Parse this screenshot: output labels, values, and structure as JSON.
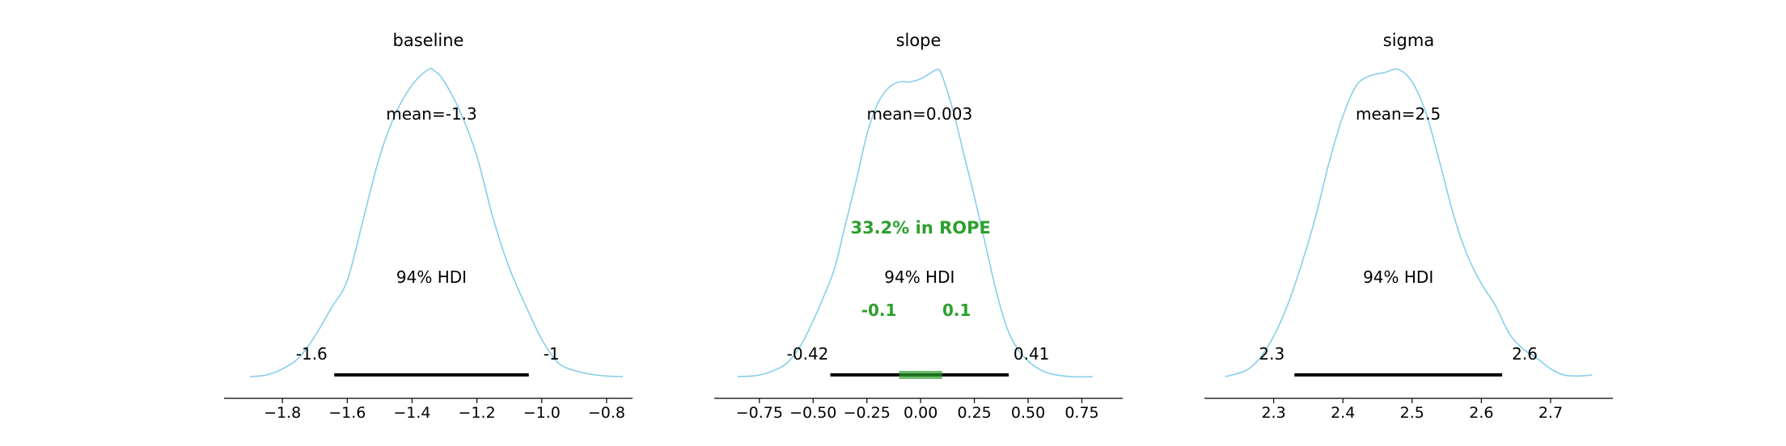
{
  "colors": {
    "kde": "#87ceeb",
    "hdi": "#000000",
    "rope": "#2ca02c",
    "axis": "#000000"
  },
  "chart_data": [
    {
      "type": "area",
      "title": "baseline",
      "mean_label": "mean=-1.3",
      "hdi_label": "94% HDI",
      "hdi": [
        -1.64,
        -1.04
      ],
      "hdi_labels": [
        "-1.6",
        "-1"
      ],
      "xlim": [
        -1.98,
        -0.72
      ],
      "ticks": [
        -1.8,
        -1.6,
        -1.4,
        -1.2,
        -1.0,
        -0.8
      ],
      "tick_labels": [
        "−1.8",
        "−1.6",
        "−1.4",
        "−1.2",
        "−1.0",
        "−0.8"
      ],
      "density": {
        "x": [
          -1.9,
          -1.85,
          -1.8,
          -1.75,
          -1.7,
          -1.65,
          -1.6,
          -1.55,
          -1.5,
          -1.45,
          -1.4,
          -1.35,
          -1.33,
          -1.3,
          -1.25,
          -1.2,
          -1.15,
          -1.1,
          -1.05,
          -1.0,
          -0.95,
          -0.9,
          -0.85,
          -0.8,
          -0.75
        ],
        "y": [
          0.01,
          0.015,
          0.035,
          0.07,
          0.14,
          0.23,
          0.32,
          0.52,
          0.72,
          0.86,
          0.95,
          1.0,
          0.995,
          0.96,
          0.86,
          0.72,
          0.52,
          0.36,
          0.24,
          0.13,
          0.055,
          0.03,
          0.018,
          0.012,
          0.01
        ]
      }
    },
    {
      "type": "area",
      "title": "slope",
      "mean_label": "mean=0.003",
      "hdi_label": "94% HDI",
      "hdi": [
        -0.42,
        0.41
      ],
      "hdi_labels": [
        "-0.42",
        "0.41"
      ],
      "rope": [
        -0.1,
        0.1
      ],
      "rope_labels": [
        "-0.1",
        "0.1"
      ],
      "rope_text": "33.2% in ROPE",
      "xlim": [
        -0.96,
        0.94
      ],
      "ticks": [
        -0.75,
        -0.5,
        -0.25,
        0.0,
        0.25,
        0.5,
        0.75
      ],
      "tick_labels": [
        "−0.75",
        "−0.50",
        "−0.25",
        "0.00",
        "0.25",
        "0.50",
        "0.75"
      ],
      "density": {
        "x": [
          -0.85,
          -0.75,
          -0.65,
          -0.6,
          -0.55,
          -0.5,
          -0.45,
          -0.4,
          -0.35,
          -0.3,
          -0.25,
          -0.2,
          -0.15,
          -0.1,
          -0.05,
          0.0,
          0.05,
          0.08,
          0.1,
          0.15,
          0.2,
          0.25,
          0.3,
          0.35,
          0.4,
          0.45,
          0.5,
          0.55,
          0.6,
          0.7,
          0.8
        ],
        "y": [
          0.01,
          0.015,
          0.04,
          0.07,
          0.12,
          0.19,
          0.27,
          0.36,
          0.5,
          0.64,
          0.79,
          0.89,
          0.94,
          0.96,
          0.96,
          0.97,
          0.99,
          1.0,
          0.98,
          0.87,
          0.73,
          0.59,
          0.44,
          0.29,
          0.17,
          0.1,
          0.06,
          0.035,
          0.02,
          0.01,
          0.01
        ]
      }
    },
    {
      "type": "area",
      "title": "sigma",
      "mean_label": "mean=2.5",
      "hdi_label": "94% HDI",
      "hdi": [
        2.33,
        2.63
      ],
      "hdi_labels": [
        "2.3",
        "2.6"
      ],
      "xlim": [
        2.2,
        2.79
      ],
      "ticks": [
        2.3,
        2.4,
        2.5,
        2.6,
        2.7
      ],
      "tick_labels": [
        "2.3",
        "2.4",
        "2.5",
        "2.6",
        "2.7"
      ],
      "density": {
        "x": [
          2.23,
          2.26,
          2.28,
          2.3,
          2.32,
          2.34,
          2.36,
          2.38,
          2.4,
          2.42,
          2.44,
          2.46,
          2.48,
          2.5,
          2.52,
          2.54,
          2.56,
          2.58,
          2.6,
          2.62,
          2.64,
          2.66,
          2.68,
          2.7,
          2.72,
          2.74,
          2.76
        ],
        "y": [
          0.01,
          0.03,
          0.07,
          0.14,
          0.24,
          0.37,
          0.52,
          0.7,
          0.85,
          0.95,
          0.98,
          0.99,
          1.0,
          0.96,
          0.86,
          0.7,
          0.53,
          0.4,
          0.31,
          0.24,
          0.15,
          0.1,
          0.07,
          0.035,
          0.015,
          0.012,
          0.015
        ]
      }
    }
  ]
}
